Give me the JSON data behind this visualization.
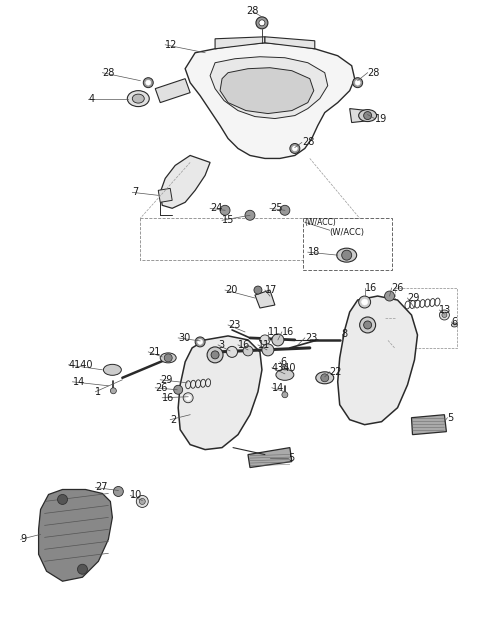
{
  "bg": "#ffffff",
  "lc": "#2a2a2a",
  "tc": "#1a1a1a",
  "fig_w": 4.8,
  "fig_h": 6.22,
  "dpi": 100
}
